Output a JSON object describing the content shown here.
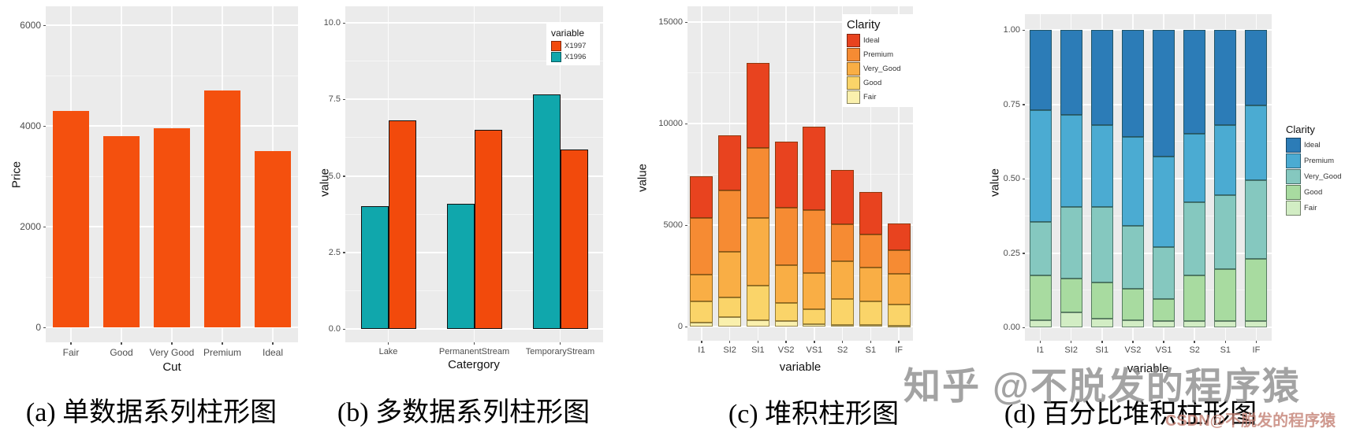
{
  "figure": {
    "background": "#ffffff",
    "panel_background": "#EBEBEB",
    "gridline_color": "#ffffff"
  },
  "watermarks": {
    "zhihu": "知乎 @不脱发的程序猿",
    "csdn": "CSDN@不脱发的程序猿"
  },
  "chart_data": [
    {
      "id": "a",
      "type": "bar",
      "caption": "(a) 单数据系列柱形图",
      "xlabel": "Cut",
      "ylabel": "Price",
      "categories": [
        "Fair",
        "Good",
        "Very Good",
        "Premium",
        "Ideal"
      ],
      "values": [
        4300,
        3800,
        3950,
        4700,
        3500
      ],
      "ytick_values": [
        0,
        2000,
        4000,
        6000
      ],
      "ytick_labels": [
        "0",
        "2000",
        "4000",
        "6000"
      ],
      "ylim": [
        0,
        6375
      ],
      "grid": true,
      "legend_position": "none",
      "bar_color": "#F4500E"
    },
    {
      "id": "b",
      "type": "grouped_bar",
      "caption": "(b) 多数据系列柱形图",
      "xlabel": "Catergory",
      "ylabel": "value",
      "categories": [
        "Lake",
        "PermanentStream",
        "TemporaryStream"
      ],
      "series": [
        {
          "name": "X1996",
          "color": "#10A7AC",
          "values": [
            4.0,
            4.1,
            7.65
          ]
        },
        {
          "name": "X1997",
          "color": "#F24A0C",
          "values": [
            6.8,
            6.5,
            5.85
          ]
        }
      ],
      "legend_title": "variable",
      "legend_position": "inside-top-right",
      "ytick_values": [
        0,
        2.5,
        5,
        7.5,
        10
      ],
      "ytick_labels": [
        "0.0",
        "2.5",
        "5.0",
        "7.5",
        "10.0"
      ],
      "ylim": [
        0,
        10.55
      ],
      "grid": true,
      "bar_stroke": "#111111"
    },
    {
      "id": "c",
      "type": "stacked_bar",
      "caption": "(c) 堆积柱形图",
      "xlabel": "variable",
      "ylabel": "value",
      "categories": [
        "I1",
        "SI2",
        "SI1",
        "VS2",
        "VS1",
        "S2",
        "S1",
        "IF"
      ],
      "series_note": "series listed bottom-to-top of stack; legend shows reverse order",
      "series": [
        {
          "name": "Fair",
          "color": "#FAF0AD",
          "values": [
            200,
            450,
            300,
            270,
            120,
            80,
            80,
            40
          ]
        },
        {
          "name": "Good",
          "color": "#FAD469",
          "values": [
            1050,
            1000,
            1700,
            900,
            730,
            1280,
            1160,
            1050
          ]
        },
        {
          "name": "Very_Good",
          "color": "#F9AE45",
          "values": [
            1300,
            2250,
            3350,
            1850,
            1800,
            1860,
            1670,
            1500
          ]
        },
        {
          "name": "Premium",
          "color": "#F68B33",
          "values": [
            2800,
            3000,
            3450,
            2850,
            3100,
            1820,
            1620,
            1170
          ]
        },
        {
          "name": "Ideal",
          "color": "#E8431F",
          "values": [
            2050,
            2700,
            4200,
            3230,
            4100,
            2660,
            2100,
            1320
          ]
        }
      ],
      "totals": [
        7400,
        9400,
        13000,
        9100,
        9850,
        7700,
        6630,
        5080
      ],
      "legend_title": "Clarity",
      "legend_position": "inside-top-right",
      "ytick_values": [
        0,
        5000,
        10000,
        15000
      ],
      "ytick_labels": [
        "0",
        "5000",
        "10000",
        "15000"
      ],
      "ylim": [
        0,
        15775
      ],
      "grid": true,
      "bar_stroke": "rgba(70,50,0,0.55)"
    },
    {
      "id": "d",
      "type": "percent_stacked_bar",
      "caption": "(d) 百分比堆积柱形图",
      "xlabel": "variable",
      "ylabel": "value",
      "categories": [
        "I1",
        "SI2",
        "SI1",
        "VS2",
        "VS1",
        "S2",
        "S1",
        "IF"
      ],
      "series_note": "series listed bottom-to-top of stack; legend shows reverse order",
      "series": [
        {
          "name": "Fair",
          "color": "#D2EDC4",
          "values": [
            0.025,
            0.05,
            0.03,
            0.025,
            0.02,
            0.02,
            0.02,
            0.02
          ]
        },
        {
          "name": "Good",
          "color": "#A8DBA0",
          "values": [
            0.15,
            0.115,
            0.12,
            0.105,
            0.075,
            0.155,
            0.175,
            0.21
          ]
        },
        {
          "name": "Very_Good",
          "color": "#85C8BF",
          "values": [
            0.18,
            0.24,
            0.255,
            0.21,
            0.175,
            0.245,
            0.25,
            0.265
          ]
        },
        {
          "name": "Premium",
          "color": "#4BABD2",
          "values": [
            0.375,
            0.31,
            0.275,
            0.3,
            0.305,
            0.23,
            0.235,
            0.25
          ]
        },
        {
          "name": "Ideal",
          "color": "#2C7CB7",
          "values": [
            0.27,
            0.285,
            0.32,
            0.36,
            0.425,
            0.35,
            0.32,
            0.255
          ]
        }
      ],
      "legend_title": "Clarity",
      "legend_position": "outside-right",
      "ytick_values": [
        0,
        0.25,
        0.5,
        0.75,
        1.0
      ],
      "ytick_labels": [
        "0.00",
        "0.25",
        "0.50",
        "0.75",
        "1.00"
      ],
      "ylim": [
        0,
        1.053
      ],
      "grid": true,
      "bar_stroke": "rgba(30,60,50,0.6)"
    }
  ]
}
